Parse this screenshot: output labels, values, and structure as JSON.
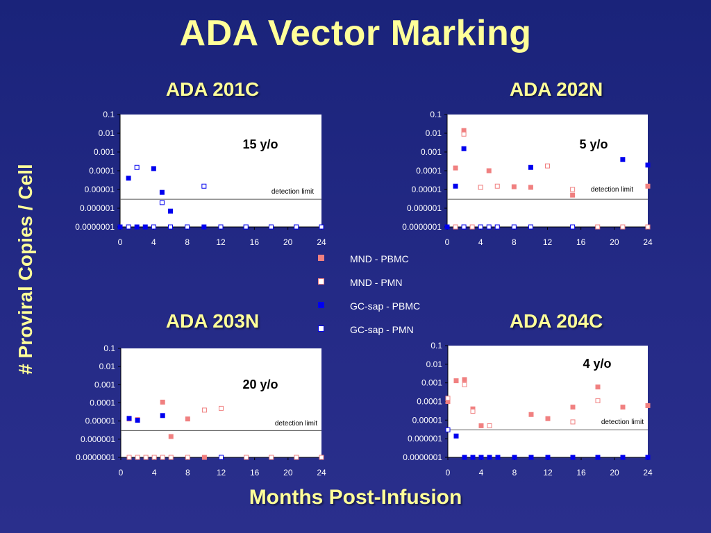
{
  "slide": {
    "title": "ADA Vector Marking",
    "y_title": "# Proviral Copies / Cell",
    "x_title": "Months Post-Infusion"
  },
  "legend": [
    {
      "label": "MND - PBMC",
      "series": "MND - PBMC"
    },
    {
      "label": "MND - PMN",
      "series": "MND - PMN"
    },
    {
      "label": "GC-sap - PBMC",
      "series": "GC-sap - PBMC"
    },
    {
      "label": "GC-sap - PMN",
      "series": "GC-sap - PMN"
    }
  ],
  "series_styles": {
    "MND - PBMC": {
      "color": "#f08080",
      "fill": "filled"
    },
    "MND - PMN": {
      "color": "#f08080",
      "fill": "hollow"
    },
    "GC-sap - PBMC": {
      "color": "#0000ee",
      "fill": "filled"
    },
    "GC-sap - PMN": {
      "color": "#0000ee",
      "fill": "hollow"
    }
  },
  "chart_data": [
    {
      "type": "scatter",
      "title": "ADA 201C",
      "annotation": "15 y/o",
      "detection_limit_label": "detection limit",
      "detection_limit": 3e-06,
      "x_ticks": [
        0,
        4,
        8,
        12,
        16,
        20,
        24
      ],
      "y_ticks": [
        "0.0000001",
        "0.000001",
        "0.00001",
        "0.0001",
        "0.001",
        "0.01",
        "0.1"
      ],
      "xlim": [
        0,
        24
      ],
      "ylim": [
        1e-07,
        0.1
      ],
      "y_scale": "log",
      "series": [
        {
          "name": "GC-sap - PBMC",
          "points": [
            [
              0,
              1e-07
            ],
            [
              1,
              4e-05
            ],
            [
              2,
              1e-07
            ],
            [
              3,
              1e-07
            ],
            [
              4,
              0.00013
            ],
            [
              5,
              7e-06
            ],
            [
              6,
              7e-07
            ],
            [
              10,
              1e-07
            ],
            [
              12,
              1e-07
            ],
            [
              15,
              1e-07
            ],
            [
              18,
              1e-07
            ],
            [
              21,
              1e-07
            ],
            [
              24,
              1e-07
            ]
          ]
        },
        {
          "name": "GC-sap - PMN",
          "points": [
            [
              1,
              1e-07
            ],
            [
              2,
              0.00015
            ],
            [
              4,
              1e-07
            ],
            [
              5,
              2e-06
            ],
            [
              6,
              1e-07
            ],
            [
              8,
              1e-07
            ],
            [
              10,
              1.5e-05
            ],
            [
              12,
              1e-07
            ],
            [
              15,
              1e-07
            ],
            [
              18,
              1e-07
            ],
            [
              21,
              1e-07
            ],
            [
              24,
              1e-07
            ]
          ]
        }
      ]
    },
    {
      "type": "scatter",
      "title": "ADA 202N",
      "annotation": "5 y/o",
      "detection_limit_label": "detection limit",
      "detection_limit": 3e-06,
      "x_ticks": [
        0,
        4,
        8,
        12,
        16,
        20,
        24
      ],
      "y_ticks": [
        "0.0000001",
        "0.000001",
        "0.00001",
        "0.0001",
        "0.001",
        "0.01",
        "0.1"
      ],
      "xlim": [
        0,
        24
      ],
      "ylim": [
        1e-07,
        0.1
      ],
      "y_scale": "log",
      "series": [
        {
          "name": "MND - PBMC",
          "points": [
            [
              1,
              0.00014
            ],
            [
              2,
              0.014
            ],
            [
              4,
              1.3e-05
            ],
            [
              5,
              0.0001
            ],
            [
              6,
              1e-07
            ],
            [
              8,
              1.4e-05
            ],
            [
              10,
              1.3e-05
            ],
            [
              15,
              5e-06
            ],
            [
              24,
              1.5e-05
            ]
          ]
        },
        {
          "name": "MND - PMN",
          "points": [
            [
              1,
              1e-07
            ],
            [
              2,
              0.009
            ],
            [
              3,
              1e-07
            ],
            [
              4,
              1.3e-05
            ],
            [
              6,
              1.5e-05
            ],
            [
              12,
              0.00018
            ],
            [
              15,
              1e-05
            ],
            [
              18,
              1e-07
            ],
            [
              21,
              1e-07
            ],
            [
              24,
              1e-07
            ]
          ]
        },
        {
          "name": "GC-sap - PBMC",
          "points": [
            [
              0,
              1e-07
            ],
            [
              1,
              1.5e-05
            ],
            [
              2,
              0.0015
            ],
            [
              10,
              0.00015
            ],
            [
              21,
              0.0004
            ],
            [
              24,
              0.0002
            ]
          ]
        },
        {
          "name": "GC-sap - PMN",
          "points": [
            [
              2,
              1e-07
            ],
            [
              4,
              1e-07
            ],
            [
              5,
              1e-07
            ],
            [
              6,
              1e-07
            ],
            [
              8,
              1e-07
            ],
            [
              10,
              1e-07
            ],
            [
              15,
              1e-07
            ]
          ]
        }
      ]
    },
    {
      "type": "scatter",
      "title": "ADA 203N",
      "annotation": "20 y/o",
      "detection_limit_label": "detection limit",
      "detection_limit": 3e-06,
      "x_ticks": [
        0,
        4,
        8,
        12,
        16,
        20,
        24
      ],
      "y_ticks": [
        "0.0000001",
        "0.000001",
        "0.00001",
        "0.0001",
        "0.001",
        "0.01",
        "0.1"
      ],
      "xlim": [
        0,
        24
      ],
      "ylim": [
        1e-07,
        0.1
      ],
      "y_scale": "log",
      "series": [
        {
          "name": "MND - PBMC",
          "points": [
            [
              1,
              1.3e-05
            ],
            [
              2,
              1.2e-05
            ],
            [
              5,
              0.00011
            ],
            [
              6,
              1.4e-06
            ],
            [
              8,
              1.3e-05
            ],
            [
              10,
              1e-07
            ],
            [
              24,
              1e-07
            ]
          ]
        },
        {
          "name": "MND - PMN",
          "points": [
            [
              1,
              1e-07
            ],
            [
              2,
              1e-07
            ],
            [
              3,
              1e-07
            ],
            [
              4,
              1e-07
            ],
            [
              5,
              1e-07
            ],
            [
              6,
              1e-07
            ],
            [
              8,
              1e-07
            ],
            [
              10,
              4e-05
            ],
            [
              12,
              5e-05
            ],
            [
              15,
              1e-07
            ],
            [
              18,
              1e-07
            ],
            [
              21,
              1e-07
            ],
            [
              24,
              1e-07
            ]
          ]
        },
        {
          "name": "GC-sap - PBMC",
          "points": [
            [
              1,
              1.4e-05
            ],
            [
              2,
              1.1e-05
            ],
            [
              5,
              2e-05
            ]
          ]
        },
        {
          "name": "GC-sap - PMN",
          "points": [
            [
              12,
              1e-07
            ]
          ]
        }
      ]
    },
    {
      "type": "scatter",
      "title": "ADA 204C",
      "annotation": "4 y/o",
      "detection_limit_label": "detection limit",
      "detection_limit": 3e-06,
      "x_ticks": [
        0,
        4,
        8,
        12,
        16,
        20,
        24
      ],
      "y_ticks": [
        "0.0000001",
        "0.000001",
        "0.00001",
        "0.0001",
        "0.001",
        "0.01",
        "0.1"
      ],
      "xlim": [
        0,
        24
      ],
      "ylim": [
        1e-07,
        0.1
      ],
      "y_scale": "log",
      "series": [
        {
          "name": "MND - PBMC",
          "points": [
            [
              0,
              0.0001
            ],
            [
              1,
              0.0013
            ],
            [
              2,
              0.0015
            ],
            [
              3,
              4e-05
            ],
            [
              4,
              5e-06
            ],
            [
              5,
              1e-07
            ],
            [
              10,
              2e-05
            ],
            [
              12,
              1.2e-05
            ],
            [
              15,
              5e-05
            ],
            [
              18,
              0.0006
            ],
            [
              21,
              5e-05
            ],
            [
              24,
              6e-05
            ]
          ]
        },
        {
          "name": "MND - PMN",
          "points": [
            [
              0,
              0.00015
            ],
            [
              2,
              0.0008
            ],
            [
              3,
              3e-05
            ],
            [
              5,
              5e-06
            ],
            [
              15,
              8e-06
            ],
            [
              18,
              0.00011
            ]
          ]
        },
        {
          "name": "GC-sap - PBMC",
          "points": [
            [
              1,
              1.4e-06
            ],
            [
              2,
              1e-07
            ],
            [
              3,
              1e-07
            ],
            [
              4,
              1e-07
            ],
            [
              5,
              1e-07
            ],
            [
              6,
              1e-07
            ],
            [
              8,
              1e-07
            ],
            [
              10,
              1e-07
            ],
            [
              12,
              1e-07
            ],
            [
              15,
              1e-07
            ],
            [
              18,
              1e-07
            ],
            [
              21,
              1e-07
            ],
            [
              24,
              1e-07
            ]
          ]
        },
        {
          "name": "GC-sap - PMN",
          "points": [
            [
              0,
              3e-06
            ]
          ]
        }
      ]
    }
  ]
}
